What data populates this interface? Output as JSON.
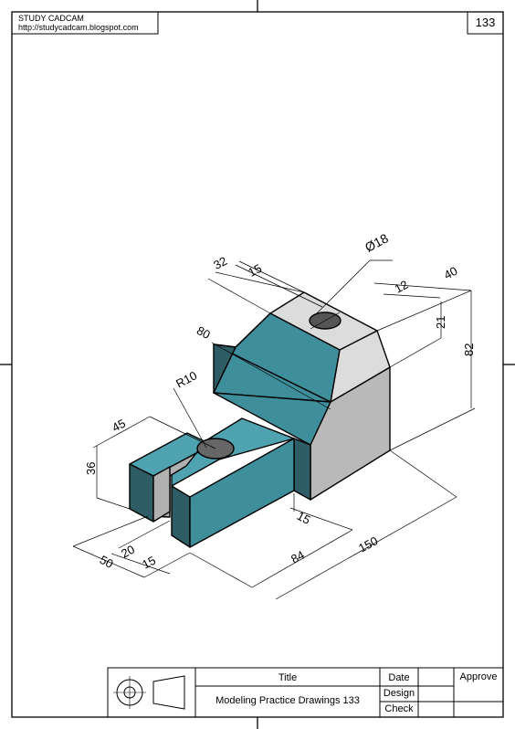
{
  "header": {
    "company": "STUDY CADCAM",
    "url": "http://studycadcam.blogspot.com",
    "page_number": "133"
  },
  "dimensions": {
    "d32": "32",
    "d15_top": "15",
    "d18": "Ø18",
    "d40": "40",
    "d12": "12",
    "d21": "21",
    "d82": "82",
    "d80": "80",
    "dR10": "R10",
    "d45": "45",
    "d36": "36",
    "d15_bottom": "15",
    "d150": "150",
    "d84": "84",
    "d20": "20",
    "d15_left": "15",
    "d50": "50"
  },
  "title_block": {
    "title_label": "Title",
    "title_value": "Modeling Practice Drawings 133",
    "date_label": "Date",
    "design_label": "Design",
    "check_label": "Check",
    "approve_label": "Approve"
  },
  "colors": {
    "teal_front": "#3e8e9c",
    "teal_dark": "#2f5d66",
    "teal_light": "#4fa3b0",
    "grey_side": "#b9b9b9",
    "grey_top": "#dcdcdc"
  }
}
